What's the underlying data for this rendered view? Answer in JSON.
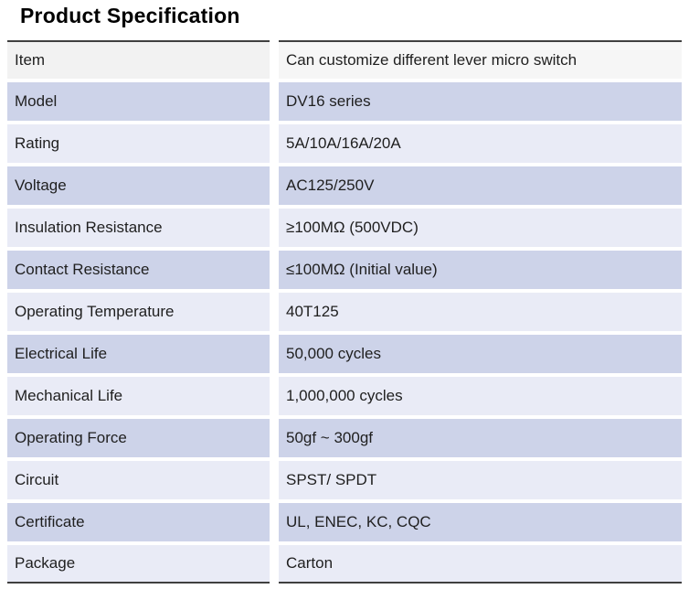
{
  "title": "Product Specification",
  "colors": {
    "row_header_left": "#f2f2f2",
    "row_header_right": "#f6f6f6",
    "row_light": "#e9ebf6",
    "row_dark": "#cdd3e9",
    "border": "#404040",
    "text": "#1f1f1f"
  },
  "table": {
    "rows": [
      {
        "label": "Item",
        "value": "Can customize different lever micro switch"
      },
      {
        "label": "Model",
        "value": "DV16 series"
      },
      {
        "label": "Rating",
        "value": "5A/10A/16A/20A"
      },
      {
        "label": "Voltage",
        "value": "AC125/250V"
      },
      {
        "label": "Insulation Resistance",
        "value": "≥100MΩ (500VDC)"
      },
      {
        "label": "Contact Resistance",
        "value": "≤100MΩ (Initial value)"
      },
      {
        "label": "Operating Temperature",
        "value": "40T125"
      },
      {
        "label": "Electrical Life",
        "value": "50,000 cycles"
      },
      {
        "label": "Mechanical Life",
        "value": "1,000,000 cycles"
      },
      {
        "label": "Operating Force",
        "value": "50gf ~  300gf"
      },
      {
        "label": "Circuit",
        "value": "SPST/ SPDT"
      },
      {
        "label": "Certificate",
        "value": "UL, ENEC, KC, CQC"
      },
      {
        "label": "Package",
        "value": "Carton"
      }
    ]
  }
}
